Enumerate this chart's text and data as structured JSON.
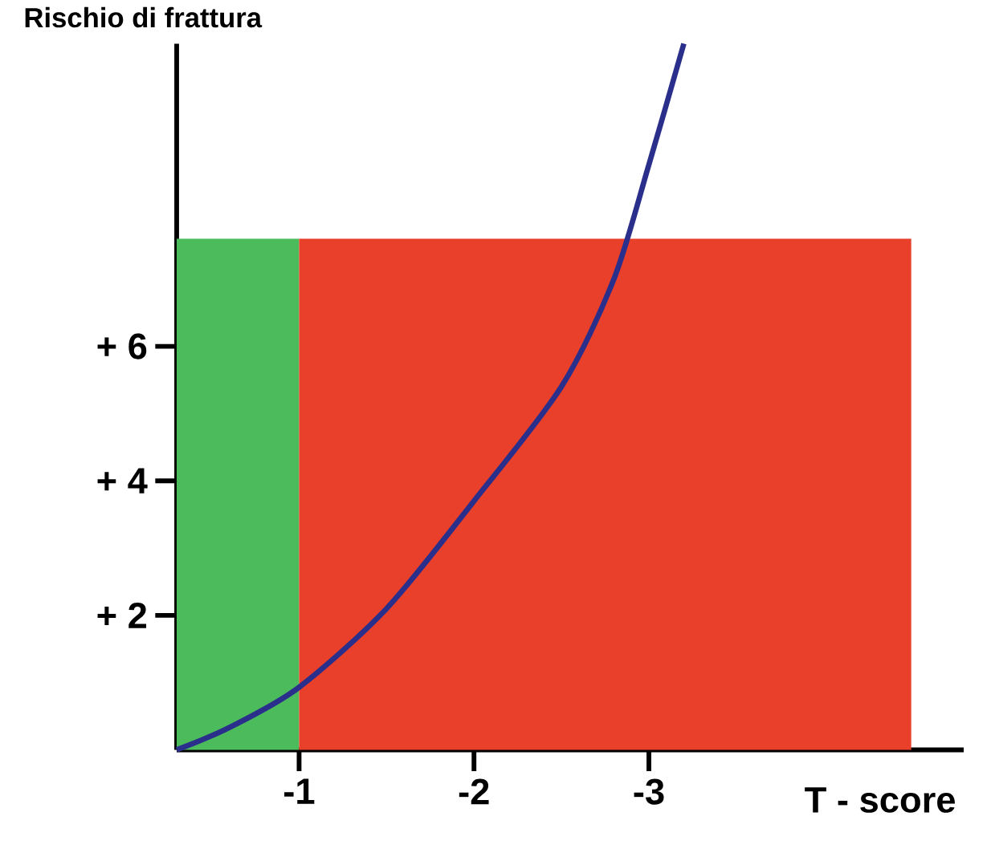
{
  "chart_data": {
    "type": "line",
    "ylabel": "Rischio di frattura",
    "xlabel": "T - score",
    "xlim": [
      -0.3,
      -4.8
    ],
    "ylim": [
      0,
      10.5
    ],
    "xticks": [
      -1,
      -2,
      -3
    ],
    "yticks": [
      {
        "value": 2,
        "label": "+ 2"
      },
      {
        "value": 4,
        "label": "+ 4"
      },
      {
        "value": 6,
        "label": "+ 6"
      }
    ],
    "grid": false,
    "marker": "none",
    "line_style": "solid",
    "series": [
      {
        "type": "area",
        "color": "#4cbb5c",
        "x": [
          -0.3,
          -1
        ],
        "values": [
          7.6,
          7.6
        ]
      },
      {
        "type": "area",
        "color": "#e8402a",
        "x": [
          -1,
          -4.5
        ],
        "values": [
          7.6,
          7.6
        ]
      },
      {
        "color": "#2b2f8c",
        "x": [
          -0.3,
          -0.6,
          -1,
          -1.5,
          -2,
          -2.5,
          -2.8,
          -3,
          -3.2
        ],
        "values": [
          0,
          0.33,
          0.93,
          2.1,
          3.7,
          5.4,
          7.0,
          8.7,
          10.5
        ]
      }
    ]
  }
}
